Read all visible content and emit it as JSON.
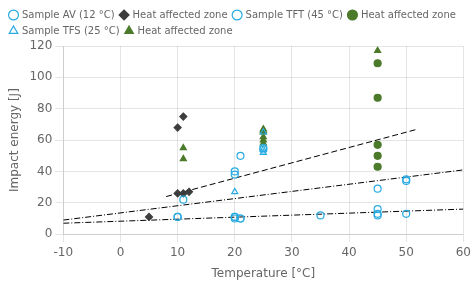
{
  "chart_data": {
    "type": "scatter",
    "xlabel": "Temperature [°C]",
    "ylabel": "Impact energy [J]",
    "xlim": [
      -10,
      60
    ],
    "ylim": [
      0,
      120
    ],
    "xticks": [
      -10,
      0,
      10,
      20,
      30,
      40,
      50,
      60
    ],
    "yticks": [
      0,
      20,
      40,
      60,
      80,
      100,
      120
    ],
    "grid": true,
    "legend": "upper left",
    "series": [
      {
        "type": "line",
        "line_style": "dashdot",
        "color": "black",
        "x": [
          -10,
          60
        ],
        "values": [
          7,
          16
        ]
      },
      {
        "type": "line",
        "line_style": "dashdot",
        "color": "black",
        "x": [
          -10,
          60
        ],
        "values": [
          9,
          41
        ]
      },
      {
        "type": "line",
        "line_style": "dashed",
        "color": "black",
        "x": [
          8,
          52
        ],
        "values": [
          24,
          67
        ]
      },
      {
        "name": "Sample AV (12 °C)",
        "type": "scatter",
        "marker": "open_circle",
        "color": "#29ABE2",
        "x": [
          10,
          10,
          11,
          20,
          20,
          21,
          35,
          45,
          45,
          50,
          50
        ],
        "values": [
          11,
          11,
          22,
          38,
          40,
          50,
          12,
          16,
          29,
          35,
          34
        ]
      },
      {
        "name": "Heat affected zone",
        "type": "scatter",
        "marker": "diamond",
        "color": "#3D3D3D",
        "x": [
          5,
          10,
          11,
          12
        ],
        "values": [
          11,
          26,
          26,
          27
        ]
      },
      {
        "name": "Sample TFT (45 °C)",
        "type": "scatter",
        "marker": "open_circle",
        "color": "#29ABE2",
        "x": [
          20,
          20,
          20,
          21,
          21,
          25,
          25,
          45,
          45,
          50
        ],
        "values": [
          10,
          11,
          11,
          10,
          10,
          55,
          54,
          12,
          13,
          13
        ]
      },
      {
        "name": "Heat affected zone",
        "type": "scatter",
        "marker": "circle",
        "color": "#4B7A2A",
        "x": [
          45,
          45,
          45,
          45,
          45
        ],
        "values": [
          43,
          50,
          57,
          87,
          109
        ]
      },
      {
        "name": "Sample TFS (25 °C)",
        "type": "scatter",
        "marker": "open_triangle",
        "color": "#29ABE2",
        "x": [
          20,
          25,
          25,
          25
        ],
        "values": [
          27,
          52,
          54,
          65
        ]
      },
      {
        "name": "Heat affected zone",
        "type": "scatter",
        "marker": "triangle",
        "color": "#4B7A2A",
        "x": [
          11,
          11,
          25,
          25,
          25,
          25,
          25,
          25,
          45
        ],
        "values": [
          48,
          55,
          58,
          60,
          62,
          65,
          67,
          66,
          117
        ]
      },
      {
        "type": "scatter",
        "marker": "diamond",
        "color": "#3D3D3D",
        "x": [
          10,
          11
        ],
        "values": [
          68,
          75
        ]
      }
    ]
  }
}
